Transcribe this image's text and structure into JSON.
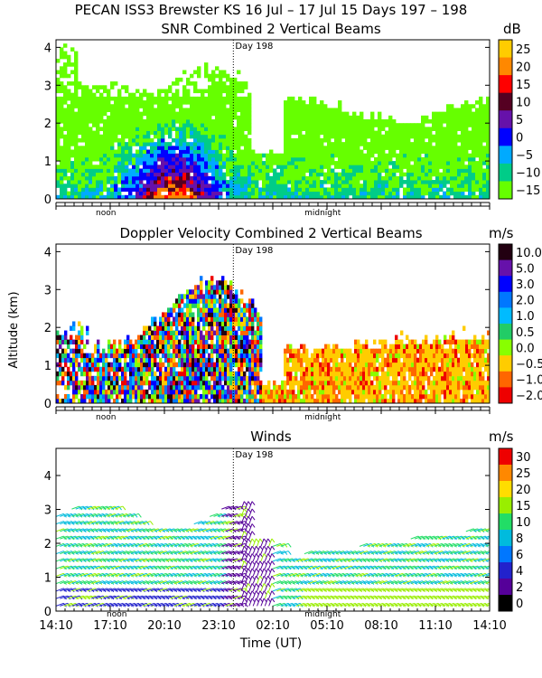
{
  "figure_title": "PECAN ISS3 Brewster KS  16 Jul – 17 Jul 15 Days 197 – 198",
  "day_marker": "Day 198",
  "x_axis": {
    "label": "Time (UT)",
    "tick_labels": [
      "14:10",
      "17:10",
      "20:10",
      "23:10",
      "02:10",
      "05:10",
      "08:10",
      "11:10",
      "14:10"
    ],
    "noon_label": "noon",
    "midnight_label": "midnight"
  },
  "y_axis_label": "Altitude (km)",
  "chart_data": [
    {
      "type": "heatmap",
      "title": "SNR Combined 2 Vertical Beams",
      "unit": "dB",
      "ylim": [
        0,
        4.2
      ],
      "y_ticks": [
        "0",
        "1",
        "2",
        "3",
        "4"
      ],
      "colorbar_labels": [
        "25",
        "20",
        "15",
        "10",
        "5",
        "0",
        "−5",
        "−10",
        "−15"
      ],
      "colorbar_colors": [
        "#ffcc00",
        "#ff8800",
        "#ff0000",
        "#550022",
        "#6611aa",
        "#0000ff",
        "#00aaff",
        "#00cc88",
        "#66ff00"
      ]
    },
    {
      "type": "heatmap",
      "title": "Doppler Velocity Combined 2 Vertical Beams",
      "unit": "m/s",
      "ylim": [
        0,
        4.2
      ],
      "y_ticks": [
        "0",
        "1",
        "2",
        "3",
        "4"
      ],
      "colorbar_labels": [
        "10.0",
        "5.0",
        "3.0",
        "2.0",
        "1.0",
        "0.5",
        "0.0",
        "−0.5",
        "−1.0",
        "−2.0"
      ],
      "colorbar_colors": [
        "#220011",
        "#6611aa",
        "#0000ff",
        "#0077ff",
        "#00bbff",
        "#22cc66",
        "#88ff00",
        "#ffcc00",
        "#ff6600",
        "#ee0000"
      ]
    },
    {
      "type": "scatter",
      "title": "Winds",
      "unit": "m/s",
      "ylim": [
        0,
        4.8
      ],
      "y_ticks": [
        "0",
        "1",
        "2",
        "3",
        "4"
      ],
      "colorbar_labels": [
        "30",
        "25",
        "20",
        "15",
        "10",
        "8",
        "6",
        "4",
        "2",
        "0"
      ],
      "colorbar_colors": [
        "#ee0000",
        "#ff8800",
        "#ffdd00",
        "#99ee00",
        "#22dd66",
        "#00bbdd",
        "#0077ff",
        "#2222cc",
        "#550099",
        "#000000"
      ]
    }
  ]
}
